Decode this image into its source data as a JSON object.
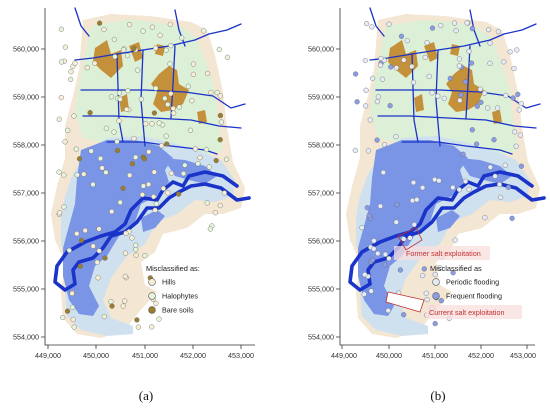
{
  "colors": {
    "hills_zone": "#f3e6d2",
    "halophyte_zone": "#dcefd7",
    "flood_dark": "#7a95e6",
    "flood_light": "#cfe0ef",
    "river": "#1a33c8",
    "bare_soil": "#c4913a",
    "annotation_red": "#c03030",
    "annotation_fill": "#f9dede",
    "axis": "#333333"
  },
  "panels": [
    {
      "id": "a",
      "label": "(a)",
      "x_ticks": [
        "449,000",
        "450,000",
        "451,000",
        "452,000",
        "453,000"
      ],
      "y_ticks": [
        "560,000",
        "559,000",
        "558,000",
        "557,000",
        "556,000",
        "555,000",
        "554,000"
      ],
      "legend": {
        "title": "Misclassified as:",
        "items": [
          {
            "label": "Hills",
            "color": "#f7eed6",
            "icon": "circle-marker"
          },
          {
            "label": "Halophytes",
            "color": "#e6f5dc",
            "icon": "circle-marker"
          },
          {
            "label": "Bare soils",
            "color": "#9a7d2f",
            "icon": "circle-marker"
          }
        ]
      }
    },
    {
      "id": "b",
      "label": "(b)",
      "x_ticks": [
        "449,000",
        "450,000",
        "451,000",
        "452,000",
        "453,000"
      ],
      "y_ticks": [
        "560,000",
        "559,000",
        "558,000",
        "557,000",
        "556,000",
        "555,000",
        "554,000"
      ],
      "legend": {
        "title": "Misclassified as",
        "items": [
          {
            "label": "Periodic flooding",
            "color": "#e6ecf7",
            "icon": "circle-marker"
          },
          {
            "label": "Frequent flooding",
            "color": "#8a9ce6",
            "icon": "circle-marker"
          }
        ]
      },
      "annotations": {
        "former": "Former salt exploitation",
        "current": "Current salt exploitation"
      }
    }
  ]
}
